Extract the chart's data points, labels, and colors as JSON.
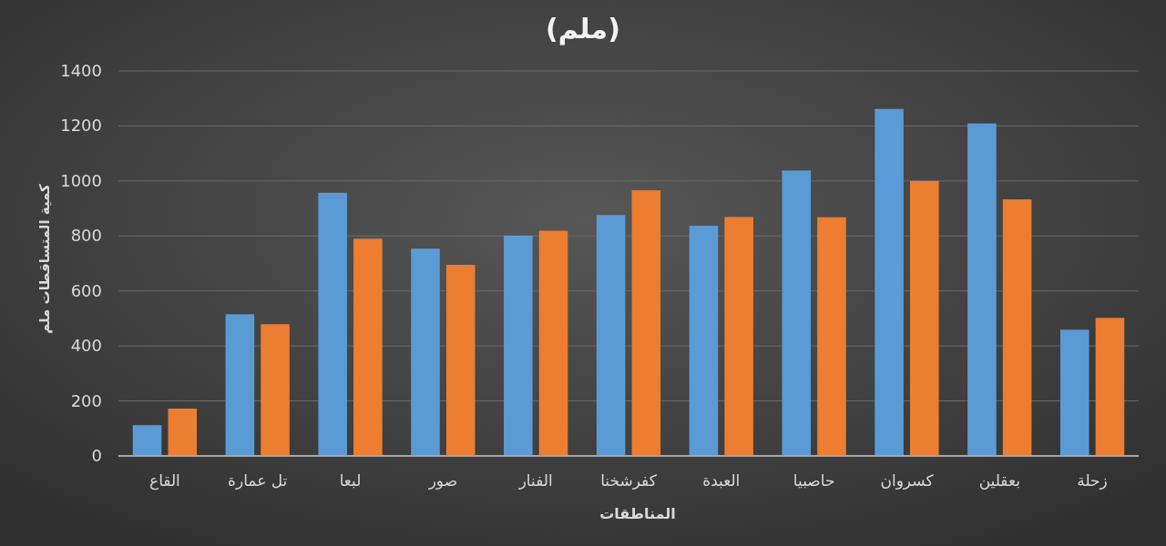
{
  "chart_data": {
    "type": "bar",
    "title": "(ملم)",
    "xlabel": "المناطقات",
    "ylabel": "كمية المتساقطات ملم",
    "categories": [
      "القاع",
      "تل عمارة",
      "لبعا",
      "صور",
      "الفنار",
      "كفرشخنا",
      "العبدة",
      "حاصبيا",
      "كسروان",
      "بعقلين",
      "زحلة"
    ],
    "series": [
      {
        "color": "#5b9bd5",
        "values": [
          112,
          515,
          957,
          754,
          801,
          876,
          837,
          1038,
          1262,
          1209,
          459
        ]
      },
      {
        "color": "#ed7d31",
        "values": [
          172,
          479,
          790,
          695,
          819,
          966,
          869,
          868,
          1000,
          933,
          502
        ]
      }
    ],
    "ylim": [
      0,
      1400
    ],
    "yticks": [
      0,
      200,
      400,
      600,
      800,
      1000,
      1200,
      1400
    ],
    "grid": "y"
  }
}
